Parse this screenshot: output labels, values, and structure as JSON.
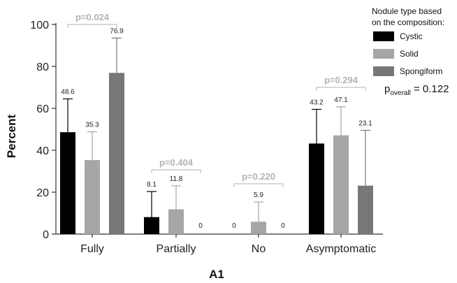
{
  "chart_data": {
    "type": "bar",
    "categories": [
      "Fully",
      "Partially",
      "No",
      "Asymptomatic"
    ],
    "series": [
      {
        "name": "Cystic",
        "color": "#000000",
        "values": [
          48.6,
          8.1,
          0,
          43.2
        ],
        "error_upper": [
          64.5,
          20.3,
          0,
          59.5
        ]
      },
      {
        "name": "Solid",
        "color": "#a6a6a6",
        "values": [
          35.3,
          11.8,
          5.9,
          47.1
        ],
        "error_upper": [
          48.8,
          23.0,
          15.3,
          60.7
        ]
      },
      {
        "name": "Spongiform",
        "color": "#777777",
        "values": [
          76.9,
          0,
          0,
          23.1
        ],
        "error_upper": [
          93.5,
          0,
          0,
          49.5
        ]
      }
    ],
    "data_labels": [
      [
        "48.6",
        "35.3",
        "76.9"
      ],
      [
        "8.1",
        "11.8",
        "0"
      ],
      [
        "0",
        "5.9",
        "0"
      ],
      [
        "43.2",
        "47.1",
        "23.1"
      ]
    ],
    "p_values": [
      "p=0.024",
      "p=0.404",
      "p=0.220",
      "p=0.294"
    ],
    "xlabel": "A1",
    "ylabel": "Percent",
    "ylim": [
      0,
      100
    ],
    "yticks": [
      0,
      20,
      40,
      60,
      80,
      100
    ],
    "legend": {
      "title_line1": "Nodule type based",
      "title_line2": "on the composition:",
      "placement": "top-right"
    },
    "p_overall": {
      "prefix": "p",
      "subscript": "overall",
      "text": " = 0.122"
    },
    "grid": false
  }
}
